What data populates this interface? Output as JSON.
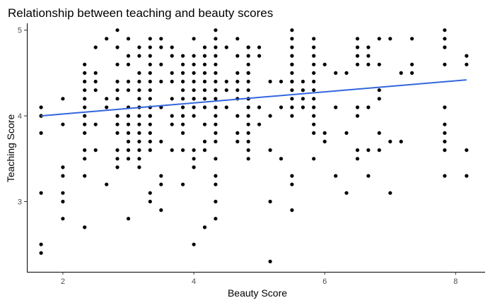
{
  "chart_data": {
    "type": "scatter",
    "title": "Relationship between teaching and beauty scores",
    "xlabel": "Beauty Score",
    "ylabel": "Teaching Score",
    "xlim": [
      1.45,
      8.45
    ],
    "ylim": [
      2.18,
      5.08
    ],
    "xticks": [
      2,
      4,
      6,
      8
    ],
    "yticks": [
      3,
      4,
      5
    ],
    "xtick_labels": [
      "2",
      "4",
      "6",
      "8"
    ],
    "ytick_labels": [
      "3",
      "4",
      "5"
    ],
    "grid": false,
    "point_color": "#000000",
    "trendline": {
      "type": "linear",
      "color": "#3366dd",
      "x": [
        1.667,
        8.167
      ],
      "y": [
        4.0,
        4.42
      ]
    },
    "x": [
      1.667,
      1.667,
      1.667,
      1.667,
      1.667,
      1.667,
      1.667,
      2.0,
      2.0,
      2.0,
      2.0,
      2.0,
      2.0,
      2.0,
      2.333,
      2.333,
      2.333,
      2.333,
      2.333,
      2.333,
      2.333,
      2.333,
      2.333,
      2.333,
      2.333,
      2.333,
      2.333,
      2.5,
      2.5,
      2.5,
      2.5,
      2.5,
      2.5,
      2.667,
      2.667,
      2.667,
      2.667,
      2.833,
      2.833,
      2.833,
      2.833,
      2.833,
      2.833,
      2.833,
      2.833,
      2.833,
      2.833,
      2.833,
      2.833,
      3.0,
      3.0,
      3.0,
      3.0,
      3.0,
      3.0,
      3.0,
      3.0,
      3.0,
      3.0,
      3.0,
      3.0,
      3.0,
      3.167,
      3.167,
      3.167,
      3.167,
      3.167,
      3.167,
      3.167,
      3.167,
      3.167,
      3.167,
      3.167,
      3.167,
      3.167,
      3.167,
      3.333,
      3.333,
      3.333,
      3.333,
      3.333,
      3.333,
      3.333,
      3.333,
      3.333,
      3.333,
      3.333,
      3.333,
      3.333,
      3.333,
      3.333,
      3.333,
      3.333,
      3.5,
      3.5,
      3.5,
      3.5,
      3.5,
      3.5,
      3.5,
      3.5,
      3.5,
      3.667,
      3.667,
      3.667,
      3.667,
      3.667,
      3.667,
      3.667,
      3.667,
      3.833,
      3.833,
      3.833,
      3.833,
      3.833,
      3.833,
      3.833,
      3.833,
      3.833,
      3.833,
      3.833,
      3.833,
      4.0,
      4.0,
      4.0,
      4.0,
      4.0,
      4.0,
      4.0,
      4.0,
      4.0,
      4.0,
      4.0,
      4.0,
      4.0,
      4.0,
      4.167,
      4.167,
      4.167,
      4.167,
      4.167,
      4.167,
      4.167,
      4.167,
      4.167,
      4.167,
      4.167,
      4.167,
      4.333,
      4.333,
      4.333,
      4.333,
      4.333,
      4.333,
      4.333,
      4.333,
      4.333,
      4.333,
      4.333,
      4.333,
      4.333,
      4.333,
      4.333,
      4.333,
      4.333,
      4.333,
      4.333,
      4.5,
      4.5,
      4.5,
      4.5,
      4.667,
      4.667,
      4.667,
      4.667,
      4.667,
      4.667,
      4.667,
      4.667,
      4.667,
      4.833,
      4.833,
      4.833,
      4.833,
      4.833,
      4.833,
      4.833,
      4.833,
      4.833,
      4.833,
      4.833,
      4.833,
      4.833,
      4.833,
      4.833,
      4.833,
      4.833,
      5.0,
      5.0,
      5.0,
      5.0,
      5.167,
      5.167,
      5.167,
      5.167,
      5.167,
      5.333,
      5.333,
      5.333,
      5.5,
      5.5,
      5.5,
      5.5,
      5.5,
      5.5,
      5.5,
      5.5,
      5.5,
      5.5,
      5.5,
      5.5,
      5.5,
      5.5,
      5.5,
      5.5,
      5.667,
      5.667,
      5.667,
      5.667,
      5.833,
      5.833,
      5.833,
      5.833,
      5.833,
      5.833,
      5.833,
      5.833,
      5.833,
      5.833,
      5.833,
      5.833,
      5.833,
      6.0,
      6.0,
      6.0,
      6.167,
      6.167,
      6.167,
      6.333,
      6.333,
      6.333,
      6.5,
      6.5,
      6.5,
      6.5,
      6.5,
      6.5,
      6.5,
      6.5,
      6.667,
      6.667,
      6.667,
      6.667,
      6.667,
      6.667,
      6.833,
      6.833,
      6.833,
      6.833,
      6.833,
      6.833,
      7.0,
      7.0,
      7.0,
      7.167,
      7.167,
      7.333,
      7.333,
      7.333,
      7.833,
      7.833,
      7.833,
      7.833,
      7.833,
      7.833,
      7.833,
      7.833,
      7.833,
      7.833,
      8.167,
      8.167,
      8.167,
      8.167
    ],
    "y": [
      4.1,
      4.0,
      3.8,
      3.1,
      2.5,
      2.4,
      4.0,
      4.2,
      3.4,
      3.3,
      3.1,
      3.0,
      2.8,
      3.9,
      4.6,
      4.5,
      4.4,
      4.3,
      4.2,
      4.1,
      4.0,
      3.9,
      3.8,
      3.6,
      3.5,
      3.3,
      2.7,
      4.8,
      4.5,
      4.4,
      4.3,
      3.9,
      3.6,
      4.9,
      4.2,
      4.1,
      3.2,
      5.0,
      4.8,
      4.6,
      4.4,
      4.3,
      4.2,
      3.9,
      3.8,
      3.6,
      3.5,
      3.4,
      4.0,
      4.9,
      4.7,
      4.6,
      4.4,
      4.3,
      4.1,
      3.9,
      3.8,
      3.7,
      3.6,
      3.5,
      2.8,
      4.0,
      4.8,
      4.7,
      4.5,
      4.4,
      4.3,
      4.2,
      4.1,
      4.0,
      3.9,
      3.8,
      3.7,
      3.6,
      3.5,
      3.4,
      4.9,
      4.8,
      4.7,
      4.6,
      4.5,
      4.4,
      4.3,
      4.2,
      4.1,
      4.0,
      3.9,
      3.8,
      3.7,
      3.6,
      3.1,
      3.0,
      4.0,
      4.9,
      4.8,
      4.6,
      4.4,
      4.1,
      3.7,
      3.3,
      3.2,
      2.9,
      4.8,
      4.7,
      4.5,
      4.4,
      4.2,
      4.0,
      3.9,
      3.6,
      4.7,
      4.6,
      4.5,
      4.4,
      4.3,
      4.2,
      4.1,
      4.0,
      3.9,
      3.8,
      3.6,
      3.2,
      4.9,
      4.7,
      4.6,
      4.5,
      4.4,
      4.3,
      4.2,
      4.1,
      4.0,
      3.6,
      3.5,
      3.4,
      2.5,
      4.2,
      4.8,
      4.7,
      4.6,
      4.5,
      4.4,
      4.3,
      4.2,
      4.1,
      3.9,
      3.7,
      3.6,
      2.7,
      5.0,
      4.9,
      4.8,
      4.7,
      4.6,
      4.5,
      4.4,
      4.3,
      4.2,
      4.1,
      4.0,
      3.9,
      3.8,
      3.7,
      3.5,
      3.3,
      3.2,
      3.0,
      2.8,
      4.8,
      4.4,
      4.3,
      4.1,
      4.9,
      4.7,
      4.5,
      4.4,
      4.3,
      4.2,
      4.0,
      3.8,
      3.7,
      4.8,
      4.7,
      4.6,
      4.5,
      4.4,
      4.3,
      4.2,
      4.1,
      4.0,
      3.9,
      3.8,
      3.7,
      3.6,
      3.5,
      4.2,
      4.5,
      4.8,
      4.8,
      4.7,
      4.1,
      3.9,
      4.4,
      4.0,
      3.6,
      3.0,
      2.3,
      4.4,
      4.1,
      3.5,
      5.0,
      4.9,
      4.8,
      4.7,
      4.6,
      4.5,
      4.4,
      4.3,
      4.2,
      4.1,
      4.0,
      3.3,
      3.2,
      2.9,
      4.6,
      4.4,
      4.4,
      4.3,
      4.2,
      4.1,
      4.9,
      4.8,
      4.7,
      4.6,
      4.5,
      4.4,
      4.3,
      4.2,
      4.1,
      3.9,
      3.8,
      3.5,
      4.0,
      4.6,
      3.8,
      3.7,
      4.5,
      4.1,
      3.3,
      4.5,
      3.8,
      3.1,
      4.9,
      4.8,
      4.7,
      4.6,
      4.1,
      4.0,
      3.6,
      3.5,
      4.8,
      4.7,
      4.6,
      4.1,
      3.6,
      3.3,
      4.9,
      4.6,
      4.3,
      4.2,
      3.8,
      3.6,
      4.9,
      3.7,
      3.1,
      4.5,
      3.7,
      4.9,
      4.6,
      4.5,
      5.0,
      4.9,
      4.8,
      4.6,
      4.1,
      3.9,
      3.7,
      3.6,
      3.3,
      3.8,
      4.7,
      4.6,
      3.6,
      3.3
    ]
  }
}
